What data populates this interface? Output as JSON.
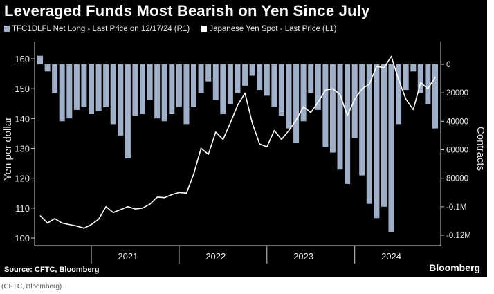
{
  "title": "Leveraged Funds Most Bearish on Yen Since July",
  "source": "Source: CFTC, Bloomberg",
  "brand": "Bloomberg",
  "caption": "(CFTC, Bloomberg)",
  "colors": {
    "background": "#000000",
    "bars": "#9fb0c8",
    "line": "#ffffff",
    "axis_text": "#e6e6e6"
  },
  "chart_data": {
    "type": "bar+line",
    "title": "Leveraged Funds Most Bearish on Yen Since July",
    "legend": [
      {
        "name": "TFC1DLFL Net Long - Last Price on 12/17/24 (R1)",
        "kind": "bar",
        "axis": "right"
      },
      {
        "name": "Japanese Yen Spot - Last Price (L1)",
        "kind": "line",
        "axis": "left"
      }
    ],
    "ylabel_left": "Yen per dollar",
    "ylabel_right": "Contracts",
    "left_ticks": [
      "100",
      "110",
      "120",
      "130",
      "140",
      "150",
      "160"
    ],
    "ylim_left": [
      99,
      164
    ],
    "right_ticks": [
      "0",
      "20000",
      "40000",
      "60000",
      "80000",
      "-0.1M",
      "-0.12M"
    ],
    "ylim_right": [
      -125000,
      8000
    ],
    "x_ticks": [
      "2021",
      "2022",
      "2023",
      "2024"
    ],
    "xlim": [
      "2020-06",
      "2024-12"
    ],
    "grid": false,
    "series": [
      {
        "name": "TFC1DLFL Net Long - Last Price on 12/17/24 (R1)",
        "type": "bar",
        "axis": "right",
        "x": [
          "2020-06",
          "2020-07",
          "2020-08",
          "2020-09",
          "2020-10",
          "2020-11",
          "2020-12",
          "2021-01",
          "2021-02",
          "2021-03",
          "2021-04",
          "2021-05",
          "2021-06",
          "2021-07",
          "2021-08",
          "2021-09",
          "2021-10",
          "2021-11",
          "2021-12",
          "2022-01",
          "2022-02",
          "2022-03",
          "2022-04",
          "2022-05",
          "2022-06",
          "2022-07",
          "2022-08",
          "2022-09",
          "2022-10",
          "2022-11",
          "2022-12",
          "2023-01",
          "2023-02",
          "2023-03",
          "2023-04",
          "2023-05",
          "2023-06",
          "2023-07",
          "2023-08",
          "2023-09",
          "2023-10",
          "2023-11",
          "2023-12",
          "2024-01",
          "2024-02",
          "2024-03",
          "2024-04",
          "2024-05",
          "2024-06",
          "2024-07",
          "2024-08",
          "2024-09",
          "2024-10",
          "2024-11",
          "2024-12"
        ],
        "values": [
          6000,
          -5000,
          -20000,
          -40000,
          -38000,
          -32000,
          -30000,
          -35000,
          -33000,
          -30000,
          -42000,
          -50000,
          -66000,
          -36000,
          -35000,
          -25000,
          -38000,
          -40000,
          -35000,
          -30000,
          -42000,
          -30000,
          -20000,
          -12000,
          -25000,
          -35000,
          -28000,
          -20000,
          -15000,
          -8000,
          -18000,
          -22000,
          -30000,
          -36000,
          -45000,
          -55000,
          -40000,
          -20000,
          -32000,
          -58000,
          -62000,
          -74000,
          -84000,
          -52000,
          -78000,
          -98000,
          -108000,
          -100000,
          -118000,
          -42000,
          -18000,
          -5000,
          -20000,
          -28000,
          -45000
        ]
      },
      {
        "name": "Japanese Yen Spot - Last Price (L1)",
        "type": "line",
        "axis": "left",
        "x": [
          "2020-06",
          "2020-07",
          "2020-08",
          "2020-09",
          "2020-10",
          "2020-11",
          "2020-12",
          "2021-01",
          "2021-02",
          "2021-03",
          "2021-04",
          "2021-05",
          "2021-06",
          "2021-07",
          "2021-08",
          "2021-09",
          "2021-10",
          "2021-11",
          "2021-12",
          "2022-01",
          "2022-02",
          "2022-03",
          "2022-04",
          "2022-05",
          "2022-06",
          "2022-07",
          "2022-08",
          "2022-09",
          "2022-10",
          "2022-11",
          "2022-12",
          "2023-01",
          "2023-02",
          "2023-03",
          "2023-04",
          "2023-05",
          "2023-06",
          "2023-07",
          "2023-08",
          "2023-09",
          "2023-10",
          "2023-11",
          "2023-12",
          "2024-01",
          "2024-02",
          "2024-03",
          "2024-04",
          "2024-05",
          "2024-06",
          "2024-07",
          "2024-08",
          "2024-09",
          "2024-10",
          "2024-11",
          "2024-12"
        ],
        "values": [
          107.5,
          105.0,
          106.5,
          105.0,
          104.5,
          104.0,
          103.3,
          104.5,
          106.3,
          110.5,
          108.5,
          109.5,
          110.5,
          109.7,
          110.0,
          111.3,
          113.7,
          113.5,
          114.5,
          115.2,
          115.0,
          121.5,
          130.0,
          128.0,
          135.5,
          133.0,
          138.5,
          144.5,
          148.5,
          138.5,
          131.5,
          130.5,
          136.0,
          133.0,
          136.0,
          139.5,
          144.0,
          142.0,
          145.5,
          149.5,
          150.0,
          148.0,
          141.0,
          146.5,
          150.0,
          151.5,
          157.5,
          157.0,
          160.8,
          153.0,
          146.5,
          143.0,
          152.0,
          150.0,
          153.8
        ]
      }
    ]
  }
}
